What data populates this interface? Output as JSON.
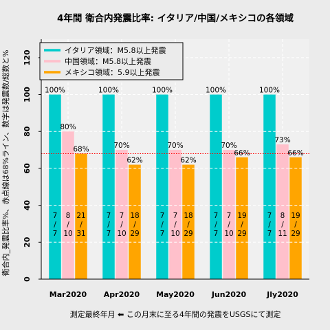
{
  "chart_data": {
    "type": "bar",
    "title": "4年間 衛合内発震比率: イタリア/中国/メキシコの各領域",
    "xlabel": "測定最終年月 ⬅ この月末に至る4年間の発震をUSGSにて測定",
    "ylabel": "衛合内_発震比率%、赤点線は68%ライン、数字は発震数/総数と%",
    "categories": [
      "Mar2020",
      "Apr2020",
      "May2020",
      "Jun2020",
      "Jly2020"
    ],
    "ylim": [
      0,
      130
    ],
    "yticks": [
      0,
      20,
      40,
      60,
      80,
      100,
      120
    ],
    "reference_line": 68,
    "reference_color": "#ff0000",
    "grid": true,
    "legend_position": "top-left",
    "series": [
      {
        "name": "イタリア領域：M5.8以上発震",
        "color": "#00cccc",
        "values": [
          100,
          100,
          100,
          100,
          100
        ],
        "value_labels": [
          "100%",
          "100%",
          "100%",
          "100%",
          "100%"
        ],
        "numerators": [
          7,
          7,
          7,
          7,
          7
        ],
        "denominators": [
          7,
          7,
          7,
          7,
          7
        ]
      },
      {
        "name": "中国領域：M5.8以上発震",
        "color": "#ffc0cb",
        "values": [
          80,
          70,
          70,
          70,
          73
        ],
        "value_labels": [
          "80%",
          "70%",
          "70%",
          "70%",
          "73%"
        ],
        "numerators": [
          8,
          7,
          7,
          7,
          8
        ],
        "denominators": [
          10,
          10,
          10,
          10,
          11
        ]
      },
      {
        "name": "メキシコ領域：5.9以上発震",
        "color": "#ffa500",
        "values": [
          68,
          62,
          62,
          66,
          66
        ],
        "value_labels": [
          "68%",
          "62%",
          "62%",
          "66%",
          "66%"
        ],
        "numerators": [
          21,
          18,
          18,
          19,
          19
        ],
        "denominators": [
          31,
          29,
          29,
          29,
          29
        ]
      }
    ]
  }
}
